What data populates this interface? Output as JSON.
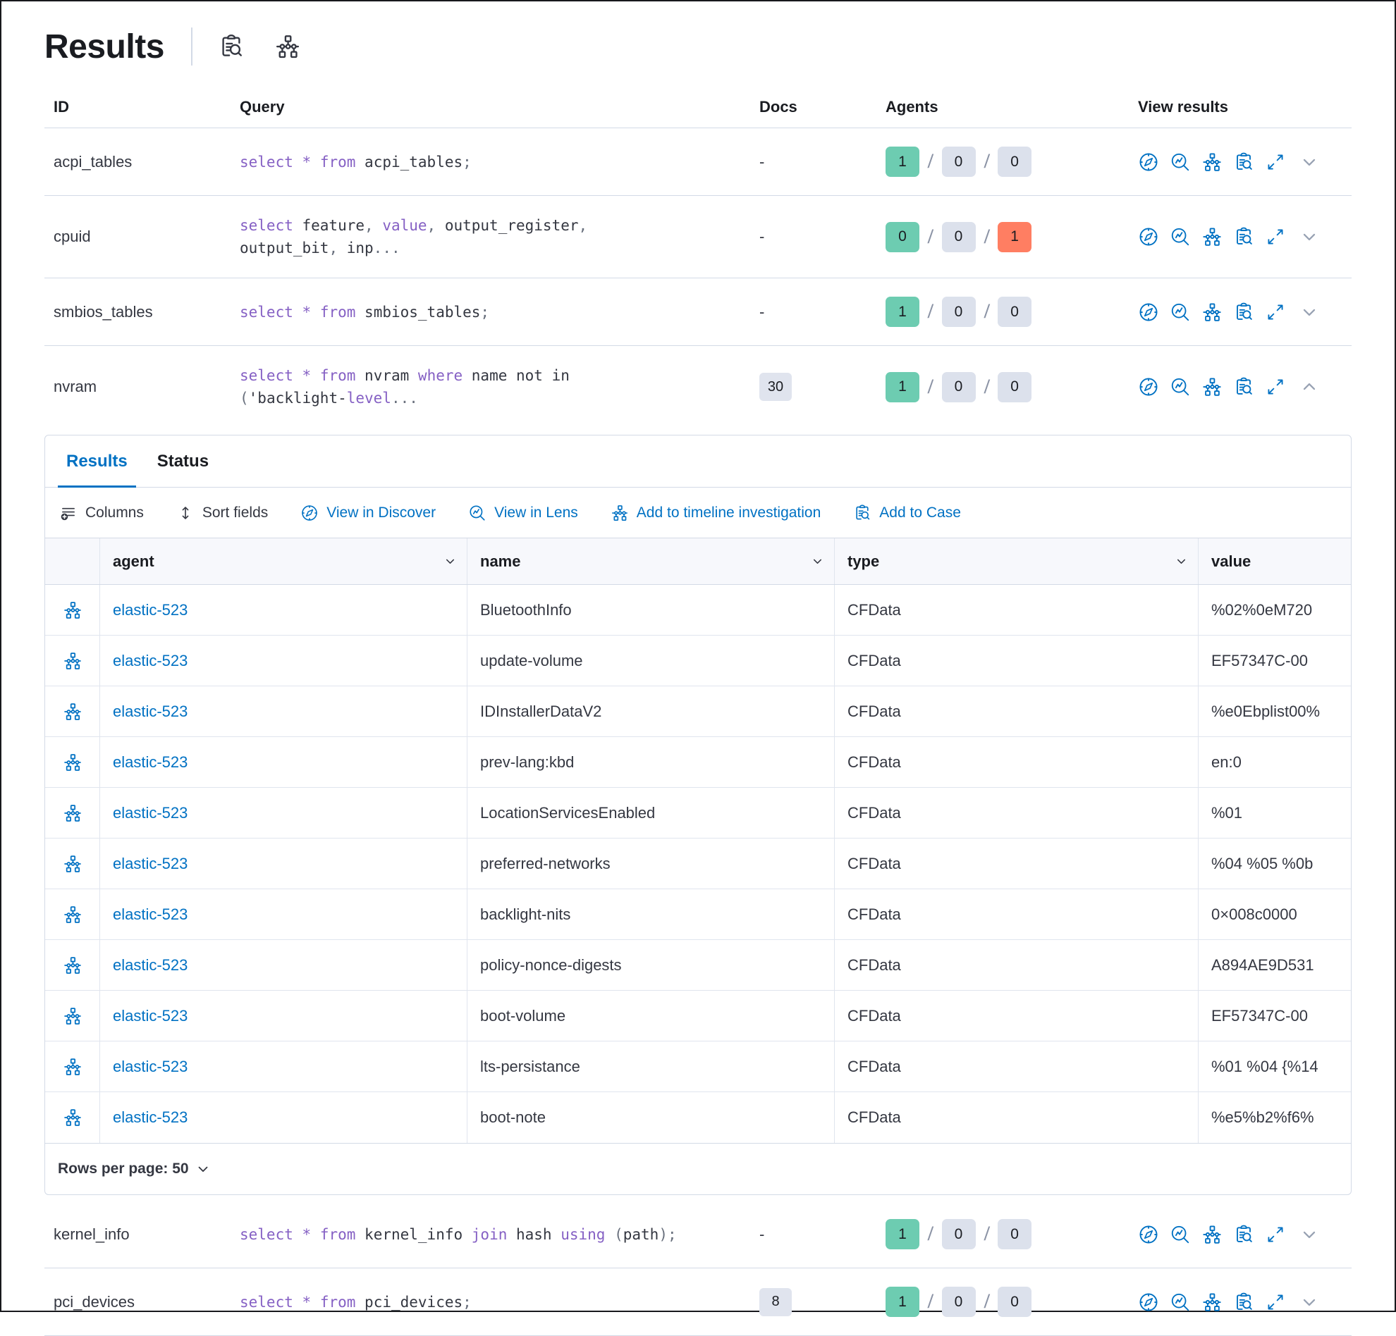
{
  "page": {
    "title": "Results"
  },
  "header": {
    "icons": [
      "inspect-icon",
      "timeline-icon"
    ]
  },
  "colors": {
    "primary": "#0071c3",
    "keyword_purple": "#8560c4",
    "success_badge": "#6dccb1",
    "danger_badge": "#ff7e62",
    "neutral_badge": "#dce1ec",
    "border": "#d3dae6"
  },
  "queries_table": {
    "columns": [
      "ID",
      "Query",
      "Docs",
      "Agents",
      "View results"
    ],
    "view_icons": [
      "discover-icon",
      "lens-icon",
      "timeline-icon",
      "case-icon",
      "fullscreen-icon"
    ],
    "rows": [
      {
        "id": "acpi_tables",
        "section": "top",
        "expanded": false,
        "expander": "down",
        "query": [
          {
            "t": "kw",
            "v": "select"
          },
          {
            "t": "pl",
            "v": " "
          },
          {
            "t": "kw",
            "v": "*"
          },
          {
            "t": "pl",
            "v": " "
          },
          {
            "t": "kw",
            "v": "from"
          },
          {
            "t": "pl",
            "v": " acpi_tables"
          },
          {
            "t": "pu",
            "v": ";"
          }
        ],
        "docs": {
          "text": "-",
          "badge": false
        },
        "agents": [
          {
            "status": "success",
            "count": "1",
            "color": "success"
          },
          {
            "status": "pending",
            "count": "0",
            "color": "neutral"
          },
          {
            "status": "failed",
            "count": "0",
            "color": "neutral"
          }
        ]
      },
      {
        "id": "cpuid",
        "section": "top",
        "expanded": false,
        "expander": "down",
        "query": [
          {
            "t": "kw",
            "v": "select"
          },
          {
            "t": "pl",
            "v": " feature"
          },
          {
            "t": "pu",
            "v": ","
          },
          {
            "t": "pl",
            "v": " "
          },
          {
            "t": "kw",
            "v": "value"
          },
          {
            "t": "pu",
            "v": ","
          },
          {
            "t": "pl",
            "v": " output_register"
          },
          {
            "t": "pu",
            "v": ","
          },
          {
            "t": "br"
          },
          {
            "t": "pl",
            "v": "output_bit"
          },
          {
            "t": "pu",
            "v": ","
          },
          {
            "t": "pl",
            "v": " inp"
          },
          {
            "t": "pu",
            "v": "..."
          }
        ],
        "docs": {
          "text": "-",
          "badge": false
        },
        "agents": [
          {
            "status": "success",
            "count": "0",
            "color": "success"
          },
          {
            "status": "pending",
            "count": "0",
            "color": "neutral"
          },
          {
            "status": "failed",
            "count": "1",
            "color": "danger"
          }
        ]
      },
      {
        "id": "smbios_tables",
        "section": "top",
        "expanded": false,
        "expander": "down",
        "query": [
          {
            "t": "kw",
            "v": "select"
          },
          {
            "t": "pl",
            "v": " "
          },
          {
            "t": "kw",
            "v": "*"
          },
          {
            "t": "pl",
            "v": " "
          },
          {
            "t": "kw",
            "v": "from"
          },
          {
            "t": "pl",
            "v": " smbios_tables"
          },
          {
            "t": "pu",
            "v": ";"
          }
        ],
        "docs": {
          "text": "-",
          "badge": false
        },
        "agents": [
          {
            "status": "success",
            "count": "1",
            "color": "success"
          },
          {
            "status": "pending",
            "count": "0",
            "color": "neutral"
          },
          {
            "status": "failed",
            "count": "0",
            "color": "neutral"
          }
        ]
      },
      {
        "id": "nvram",
        "section": "top",
        "expanded": true,
        "expander": "up",
        "query": [
          {
            "t": "kw",
            "v": "select"
          },
          {
            "t": "pl",
            "v": " "
          },
          {
            "t": "kw",
            "v": "*"
          },
          {
            "t": "pl",
            "v": " "
          },
          {
            "t": "kw",
            "v": "from"
          },
          {
            "t": "pl",
            "v": " nvram "
          },
          {
            "t": "kw",
            "v": "where"
          },
          {
            "t": "pl",
            "v": " name not in"
          },
          {
            "t": "br"
          },
          {
            "t": "pu",
            "v": "("
          },
          {
            "t": "pl",
            "v": "'backlight-"
          },
          {
            "t": "kw",
            "v": "level"
          },
          {
            "t": "pu",
            "v": "..."
          }
        ],
        "docs": {
          "text": "30",
          "badge": true
        },
        "agents": [
          {
            "status": "success",
            "count": "1",
            "color": "success"
          },
          {
            "status": "pending",
            "count": "0",
            "color": "neutral"
          },
          {
            "status": "failed",
            "count": "0",
            "color": "neutral"
          }
        ]
      },
      {
        "id": "kernel_info",
        "section": "bottom",
        "expanded": false,
        "expander": "down",
        "query": [
          {
            "t": "kw",
            "v": "select"
          },
          {
            "t": "pl",
            "v": " "
          },
          {
            "t": "kw",
            "v": "*"
          },
          {
            "t": "pl",
            "v": " "
          },
          {
            "t": "kw",
            "v": "from"
          },
          {
            "t": "pl",
            "v": " kernel_info "
          },
          {
            "t": "kw",
            "v": "join"
          },
          {
            "t": "pl",
            "v": " hash "
          },
          {
            "t": "kw",
            "v": "using"
          },
          {
            "t": "pl",
            "v": " "
          },
          {
            "t": "pu",
            "v": "("
          },
          {
            "t": "pl",
            "v": "path"
          },
          {
            "t": "pu",
            "v": ")"
          },
          {
            "t": "pu",
            "v": ";"
          }
        ],
        "docs": {
          "text": "-",
          "badge": false
        },
        "agents": [
          {
            "status": "success",
            "count": "1",
            "color": "success"
          },
          {
            "status": "pending",
            "count": "0",
            "color": "neutral"
          },
          {
            "status": "failed",
            "count": "0",
            "color": "neutral"
          }
        ]
      },
      {
        "id": "pci_devices",
        "section": "bottom",
        "expanded": false,
        "expander": "down",
        "query": [
          {
            "t": "kw",
            "v": "select"
          },
          {
            "t": "pl",
            "v": " "
          },
          {
            "t": "kw",
            "v": "*"
          },
          {
            "t": "pl",
            "v": " "
          },
          {
            "t": "kw",
            "v": "from"
          },
          {
            "t": "pl",
            "v": " pci_devices"
          },
          {
            "t": "pu",
            "v": ";"
          }
        ],
        "docs": {
          "text": "8",
          "badge": true
        },
        "agents": [
          {
            "status": "success",
            "count": "1",
            "color": "success"
          },
          {
            "status": "pending",
            "count": "0",
            "color": "neutral"
          },
          {
            "status": "failed",
            "count": "0",
            "color": "neutral"
          }
        ]
      }
    ]
  },
  "panel": {
    "tabs": [
      {
        "label": "Results",
        "active": true
      },
      {
        "label": "Status",
        "active": false
      }
    ],
    "toolbar": [
      {
        "icon": "columns-icon",
        "label": "Columns",
        "style": "default"
      },
      {
        "icon": "sort-icon",
        "label": "Sort fields",
        "style": "default"
      },
      {
        "icon": "discover-icon",
        "label": "View in Discover",
        "style": "primary"
      },
      {
        "icon": "lens-icon",
        "label": "View in Lens",
        "style": "primary"
      },
      {
        "icon": "timeline-icon",
        "label": "Add to timeline investigation",
        "style": "primary"
      },
      {
        "icon": "case-icon",
        "label": "Add to Case",
        "style": "primary"
      }
    ],
    "grid": {
      "columns": [
        {
          "label": "",
          "chevron": false
        },
        {
          "label": "agent",
          "chevron": true
        },
        {
          "label": "name",
          "chevron": true
        },
        {
          "label": "type",
          "chevron": true
        },
        {
          "label": "value",
          "chevron": false
        }
      ],
      "rows": [
        {
          "agent": "elastic-523",
          "name": "BluetoothInfo",
          "type": "CFData",
          "value": "%02%0eM720"
        },
        {
          "agent": "elastic-523",
          "name": "update-volume",
          "type": "CFData",
          "value": "EF57347C-00"
        },
        {
          "agent": "elastic-523",
          "name": "IDInstallerDataV2",
          "type": "CFData",
          "value": "%e0Ebplist00%"
        },
        {
          "agent": "elastic-523",
          "name": "prev-lang:kbd",
          "type": "CFData",
          "value": "en:0"
        },
        {
          "agent": "elastic-523",
          "name": "LocationServicesEnabled",
          "type": "CFData",
          "value": "%01"
        },
        {
          "agent": "elastic-523",
          "name": "preferred-networks",
          "type": "CFData",
          "value": "%04 %05 %0b"
        },
        {
          "agent": "elastic-523",
          "name": "backlight-nits",
          "type": "CFData",
          "value": "0×008c0000"
        },
        {
          "agent": "elastic-523",
          "name": "policy-nonce-digests",
          "type": "CFData",
          "value": "A894AE9D531"
        },
        {
          "agent": "elastic-523",
          "name": "boot-volume",
          "type": "CFData",
          "value": "EF57347C-00"
        },
        {
          "agent": "elastic-523",
          "name": "lts-persistance",
          "type": "CFData",
          "value": "%01 %04 {%14"
        },
        {
          "agent": "elastic-523",
          "name": "boot-note",
          "type": "CFData",
          "value": "%e5%b2%f6%"
        }
      ]
    },
    "footer": {
      "rows_per_page_label": "Rows per page: 50",
      "chevron_icon": "chevron-down-icon"
    }
  }
}
